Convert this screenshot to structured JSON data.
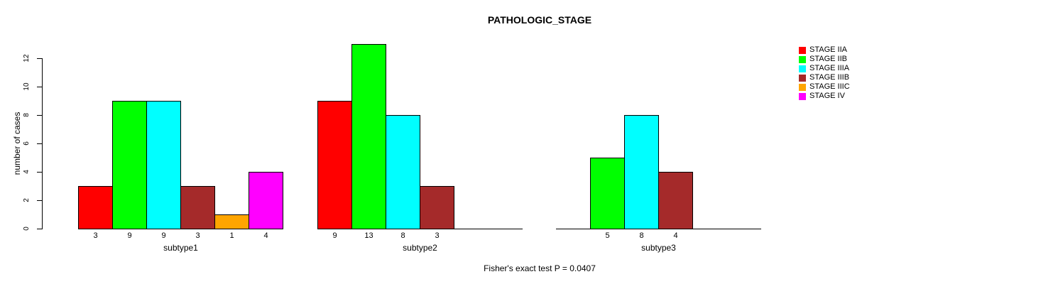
{
  "chart_data": {
    "type": "bar",
    "title": "PATHOLOGIC_STAGE",
    "ylabel": "number of cases",
    "xlabel": "",
    "ylim": [
      0,
      13
    ],
    "yticks": [
      0,
      2,
      4,
      6,
      8,
      10,
      12
    ],
    "grid": false,
    "legend_position": "right",
    "categories": [
      "subtype1",
      "subtype2",
      "subtype3"
    ],
    "series": [
      {
        "name": "STAGE IIA",
        "color": "#FF0000",
        "values": [
          3,
          9,
          0
        ]
      },
      {
        "name": "STAGE IIB",
        "color": "#00FF00",
        "values": [
          9,
          13,
          5
        ]
      },
      {
        "name": "STAGE IIIA",
        "color": "#00FFFF",
        "values": [
          9,
          8,
          8
        ]
      },
      {
        "name": "STAGE IIIB",
        "color": "#A52A2A",
        "values": [
          3,
          3,
          4
        ]
      },
      {
        "name": "STAGE IIIC",
        "color": "#FFA500",
        "values": [
          1,
          0,
          0
        ]
      },
      {
        "name": "STAGE IV",
        "color": "#FF00FF",
        "values": [
          4,
          0,
          0
        ]
      }
    ],
    "bar_value_labels_shown_for_nonzero_bars": true,
    "annotation": "Fisher's exact test P = 0.0407",
    "colors": {
      "axis": "#000000",
      "background": "#FFFFFF"
    }
  }
}
